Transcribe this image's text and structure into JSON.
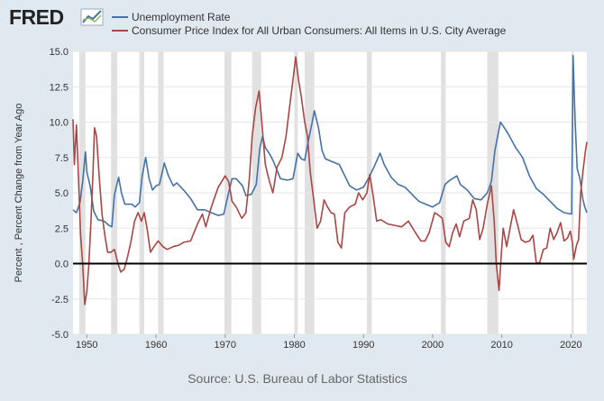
{
  "logo": {
    "text": "FRED"
  },
  "source": "Source: U.S. Bureau of Labor Statistics",
  "colors": {
    "background": "#e1e9f0",
    "plot_background": "#ffffff",
    "recession": "#e1e1e1",
    "unemployment": "#4572a7",
    "cpi": "#aa4643",
    "zero_line": "#000000"
  },
  "chart_data": {
    "type": "line",
    "ylabel": "Percent , Percent Change from Year Ago",
    "xlim": [
      1948.0,
      2022.3
    ],
    "ylim": [
      -5.0,
      15.0
    ],
    "yticks": [
      -5.0,
      -2.5,
      0.0,
      2.5,
      5.0,
      7.5,
      10.0,
      12.5,
      15.0
    ],
    "ytick_labels": [
      "-5.0",
      "-2.5",
      "0.0",
      "2.5",
      "5.0",
      "7.5",
      "10.0",
      "12.5",
      "15.0"
    ],
    "xticks": [
      1950,
      1960,
      1970,
      1980,
      1990,
      2000,
      2010,
      2020
    ],
    "xtick_labels": [
      "1950",
      "1960",
      "1970",
      "1980",
      "1990",
      "2000",
      "2010",
      "2020"
    ],
    "grid": true,
    "legend_position": "top-left",
    "recessions": [
      [
        1948.9,
        1949.8
      ],
      [
        1953.5,
        1954.4
      ],
      [
        1957.6,
        1958.3
      ],
      [
        1960.3,
        1961.1
      ],
      [
        1969.9,
        1970.9
      ],
      [
        1973.9,
        1975.2
      ],
      [
        1980.0,
        1980.5
      ],
      [
        1981.5,
        1982.9
      ],
      [
        1990.5,
        1991.2
      ],
      [
        2001.2,
        2001.9
      ],
      [
        2007.9,
        2009.5
      ],
      [
        2020.1,
        2020.4
      ]
    ],
    "series": [
      {
        "name": "Unemployment Rate",
        "color": "#4572a7",
        "points": [
          [
            1948.0,
            3.8
          ],
          [
            1948.5,
            3.6
          ],
          [
            1949.0,
            4.3
          ],
          [
            1949.4,
            5.8
          ],
          [
            1949.8,
            7.9
          ],
          [
            1950.0,
            6.5
          ],
          [
            1950.5,
            5.4
          ],
          [
            1951.0,
            3.7
          ],
          [
            1951.6,
            3.1
          ],
          [
            1952.5,
            3.0
          ],
          [
            1953.2,
            2.7
          ],
          [
            1953.6,
            2.6
          ],
          [
            1954.0,
            4.9
          ],
          [
            1954.6,
            6.1
          ],
          [
            1955.0,
            5.0
          ],
          [
            1955.5,
            4.2
          ],
          [
            1956.5,
            4.2
          ],
          [
            1957.0,
            4.0
          ],
          [
            1957.6,
            4.3
          ],
          [
            1958.0,
            6.2
          ],
          [
            1958.5,
            7.5
          ],
          [
            1959.0,
            6.0
          ],
          [
            1959.5,
            5.2
          ],
          [
            1960.0,
            5.5
          ],
          [
            1960.5,
            5.6
          ],
          [
            1961.2,
            7.1
          ],
          [
            1961.8,
            6.2
          ],
          [
            1962.5,
            5.5
          ],
          [
            1963.0,
            5.7
          ],
          [
            1964.0,
            5.2
          ],
          [
            1965.0,
            4.6
          ],
          [
            1966.0,
            3.8
          ],
          [
            1967.0,
            3.8
          ],
          [
            1968.0,
            3.6
          ],
          [
            1969.0,
            3.4
          ],
          [
            1969.8,
            3.5
          ],
          [
            1970.5,
            5.0
          ],
          [
            1971.0,
            6.0
          ],
          [
            1971.6,
            6.0
          ],
          [
            1972.5,
            5.5
          ],
          [
            1973.0,
            4.8
          ],
          [
            1973.8,
            4.9
          ],
          [
            1974.5,
            5.6
          ],
          [
            1975.0,
            8.1
          ],
          [
            1975.4,
            9.0
          ],
          [
            1975.8,
            8.2
          ],
          [
            1976.5,
            7.7
          ],
          [
            1977.0,
            7.2
          ],
          [
            1978.0,
            6.0
          ],
          [
            1979.0,
            5.9
          ],
          [
            1979.8,
            6.0
          ],
          [
            1980.5,
            7.8
          ],
          [
            1981.0,
            7.4
          ],
          [
            1981.5,
            7.3
          ],
          [
            1982.0,
            8.6
          ],
          [
            1982.5,
            9.8
          ],
          [
            1982.9,
            10.8
          ],
          [
            1983.5,
            9.6
          ],
          [
            1984.0,
            8.0
          ],
          [
            1984.5,
            7.4
          ],
          [
            1985.5,
            7.2
          ],
          [
            1986.5,
            7.0
          ],
          [
            1987.0,
            6.5
          ],
          [
            1988.0,
            5.5
          ],
          [
            1989.0,
            5.2
          ],
          [
            1990.0,
            5.4
          ],
          [
            1990.7,
            6.0
          ],
          [
            1991.5,
            6.8
          ],
          [
            1992.4,
            7.8
          ],
          [
            1993.0,
            7.0
          ],
          [
            1994.0,
            6.1
          ],
          [
            1995.0,
            5.6
          ],
          [
            1996.0,
            5.4
          ],
          [
            1997.0,
            4.9
          ],
          [
            1998.0,
            4.4
          ],
          [
            1999.0,
            4.2
          ],
          [
            2000.0,
            4.0
          ],
          [
            2001.0,
            4.3
          ],
          [
            2001.8,
            5.6
          ],
          [
            2002.5,
            5.9
          ],
          [
            2003.5,
            6.2
          ],
          [
            2004.0,
            5.6
          ],
          [
            2005.0,
            5.2
          ],
          [
            2006.0,
            4.6
          ],
          [
            2007.0,
            4.5
          ],
          [
            2007.9,
            5.0
          ],
          [
            2008.5,
            5.8
          ],
          [
            2009.0,
            8.0
          ],
          [
            2009.8,
            10.0
          ],
          [
            2010.5,
            9.5
          ],
          [
            2011.0,
            9.1
          ],
          [
            2012.0,
            8.2
          ],
          [
            2013.0,
            7.5
          ],
          [
            2014.0,
            6.2
          ],
          [
            2015.0,
            5.3
          ],
          [
            2016.0,
            4.9
          ],
          [
            2017.0,
            4.4
          ],
          [
            2018.0,
            3.9
          ],
          [
            2019.0,
            3.6
          ],
          [
            2020.1,
            3.5
          ],
          [
            2020.3,
            14.7
          ],
          [
            2020.6,
            10.0
          ],
          [
            2020.9,
            6.7
          ],
          [
            2021.3,
            6.0
          ],
          [
            2021.7,
            4.6
          ],
          [
            2022.0,
            4.0
          ],
          [
            2022.3,
            3.6
          ]
        ]
      },
      {
        "name": "Consumer Price Index for All Urban Consumers: All Items in U.S. City Average",
        "color": "#aa4643",
        "points": [
          [
            1948.0,
            10.2
          ],
          [
            1948.2,
            7.0
          ],
          [
            1948.5,
            9.8
          ],
          [
            1948.8,
            6.0
          ],
          [
            1949.1,
            2.0
          ],
          [
            1949.4,
            0.0
          ],
          [
            1949.7,
            -2.9
          ],
          [
            1950.0,
            -2.0
          ],
          [
            1950.3,
            0.0
          ],
          [
            1950.6,
            3.0
          ],
          [
            1950.9,
            6.5
          ],
          [
            1951.1,
            9.6
          ],
          [
            1951.4,
            9.0
          ],
          [
            1951.8,
            6.0
          ],
          [
            1952.2,
            3.5
          ],
          [
            1952.6,
            2.0
          ],
          [
            1953.0,
            0.8
          ],
          [
            1953.5,
            0.8
          ],
          [
            1954.0,
            1.0
          ],
          [
            1954.5,
            0.0
          ],
          [
            1954.9,
            -0.6
          ],
          [
            1955.4,
            -0.4
          ],
          [
            1955.9,
            0.5
          ],
          [
            1956.4,
            1.6
          ],
          [
            1956.9,
            3.0
          ],
          [
            1957.4,
            3.6
          ],
          [
            1957.9,
            3.0
          ],
          [
            1958.3,
            3.6
          ],
          [
            1958.7,
            2.5
          ],
          [
            1959.2,
            0.8
          ],
          [
            1959.7,
            1.2
          ],
          [
            1960.3,
            1.6
          ],
          [
            1961.0,
            1.2
          ],
          [
            1961.6,
            1.0
          ],
          [
            1962.5,
            1.2
          ],
          [
            1963.3,
            1.3
          ],
          [
            1964.0,
            1.5
          ],
          [
            1965.0,
            1.6
          ],
          [
            1966.0,
            2.8
          ],
          [
            1966.7,
            3.5
          ],
          [
            1967.2,
            2.6
          ],
          [
            1968.0,
            4.0
          ],
          [
            1969.0,
            5.4
          ],
          [
            1970.0,
            6.2
          ],
          [
            1970.5,
            5.8
          ],
          [
            1971.0,
            4.4
          ],
          [
            1971.6,
            4.0
          ],
          [
            1972.4,
            3.2
          ],
          [
            1973.0,
            3.6
          ],
          [
            1973.5,
            6.0
          ],
          [
            1973.9,
            9.0
          ],
          [
            1974.4,
            11.0
          ],
          [
            1974.9,
            12.2
          ],
          [
            1975.3,
            10.0
          ],
          [
            1975.8,
            7.0
          ],
          [
            1976.3,
            6.0
          ],
          [
            1976.9,
            5.0
          ],
          [
            1977.5,
            6.8
          ],
          [
            1978.2,
            7.5
          ],
          [
            1978.8,
            9.0
          ],
          [
            1979.3,
            11.0
          ],
          [
            1979.8,
            13.0
          ],
          [
            1980.2,
            14.6
          ],
          [
            1980.6,
            13.0
          ],
          [
            1981.0,
            11.8
          ],
          [
            1981.5,
            10.0
          ],
          [
            1981.9,
            9.0
          ],
          [
            1982.3,
            6.5
          ],
          [
            1982.8,
            4.5
          ],
          [
            1983.3,
            2.5
          ],
          [
            1983.8,
            3.0
          ],
          [
            1984.3,
            4.5
          ],
          [
            1984.8,
            4.0
          ],
          [
            1985.3,
            3.6
          ],
          [
            1985.8,
            3.5
          ],
          [
            1986.3,
            1.5
          ],
          [
            1986.8,
            1.1
          ],
          [
            1987.3,
            3.6
          ],
          [
            1988.0,
            4.0
          ],
          [
            1988.8,
            4.2
          ],
          [
            1989.3,
            5.0
          ],
          [
            1989.9,
            4.5
          ],
          [
            1990.5,
            5.0
          ],
          [
            1990.9,
            6.3
          ],
          [
            1991.4,
            4.8
          ],
          [
            1991.9,
            3.0
          ],
          [
            1992.5,
            3.1
          ],
          [
            1993.5,
            2.8
          ],
          [
            1994.5,
            2.7
          ],
          [
            1995.5,
            2.6
          ],
          [
            1996.5,
            3.0
          ],
          [
            1997.5,
            2.2
          ],
          [
            1998.3,
            1.6
          ],
          [
            1998.9,
            1.6
          ],
          [
            1999.5,
            2.2
          ],
          [
            2000.3,
            3.6
          ],
          [
            2000.9,
            3.4
          ],
          [
            2001.4,
            3.2
          ],
          [
            2001.9,
            1.5
          ],
          [
            2002.4,
            1.2
          ],
          [
            2002.9,
            2.2
          ],
          [
            2003.4,
            2.8
          ],
          [
            2003.9,
            1.9
          ],
          [
            2004.5,
            3.0
          ],
          [
            2005.3,
            3.2
          ],
          [
            2005.8,
            4.5
          ],
          [
            2006.3,
            3.8
          ],
          [
            2006.8,
            1.7
          ],
          [
            2007.3,
            2.5
          ],
          [
            2007.9,
            4.2
          ],
          [
            2008.5,
            5.5
          ],
          [
            2008.9,
            3.0
          ],
          [
            2009.2,
            0.0
          ],
          [
            2009.6,
            -1.9
          ],
          [
            2009.9,
            0.5
          ],
          [
            2010.2,
            2.5
          ],
          [
            2010.7,
            1.2
          ],
          [
            2011.2,
            2.5
          ],
          [
            2011.7,
            3.8
          ],
          [
            2012.3,
            2.7
          ],
          [
            2012.8,
            1.7
          ],
          [
            2013.4,
            1.5
          ],
          [
            2014.0,
            1.6
          ],
          [
            2014.5,
            2.0
          ],
          [
            2015.0,
            0.0
          ],
          [
            2015.5,
            0.1
          ],
          [
            2016.0,
            1.0
          ],
          [
            2016.5,
            1.1
          ],
          [
            2017.0,
            2.5
          ],
          [
            2017.5,
            1.7
          ],
          [
            2018.0,
            2.2
          ],
          [
            2018.5,
            2.9
          ],
          [
            2019.0,
            1.6
          ],
          [
            2019.5,
            1.8
          ],
          [
            2019.9,
            2.3
          ],
          [
            2020.2,
            1.5
          ],
          [
            2020.4,
            0.3
          ],
          [
            2020.8,
            1.3
          ],
          [
            2021.1,
            1.7
          ],
          [
            2021.4,
            5.0
          ],
          [
            2021.8,
            6.8
          ],
          [
            2022.1,
            8.0
          ],
          [
            2022.3,
            8.6
          ]
        ]
      }
    ]
  }
}
